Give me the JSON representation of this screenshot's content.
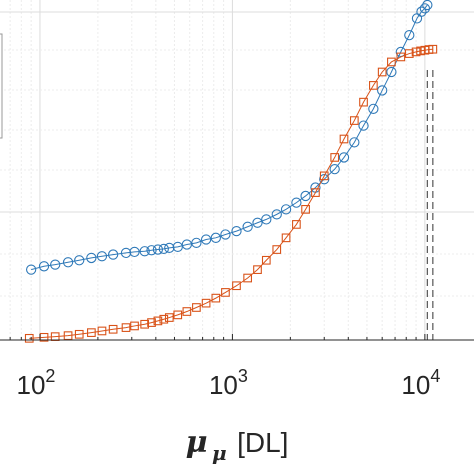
{
  "chart_data": {
    "type": "scatter",
    "title": "",
    "xlabel": {
      "symbol": "μ",
      "subscript": "μ",
      "unit": "[DL]"
    },
    "ylabel": "",
    "xscale": "log",
    "x_ticks": [
      {
        "base": "10",
        "exp": "2",
        "value": 100
      },
      {
        "base": "10",
        "exp": "3",
        "value": 1000
      },
      {
        "base": "10",
        "exp": "4",
        "value": 10000
      }
    ],
    "xlim": [
      62,
      18000
    ],
    "ylim": [
      0,
      1
    ],
    "grid": true,
    "legend": "partially visible box at top-left",
    "series": [
      {
        "marker": "circle",
        "color": "#2f79b8",
        "points": [
          [
            90,
            0.21
          ],
          [
            105,
            0.22
          ],
          [
            120,
            0.225
          ],
          [
            140,
            0.232
          ],
          [
            160,
            0.238
          ],
          [
            185,
            0.245
          ],
          [
            210,
            0.25
          ],
          [
            240,
            0.255
          ],
          [
            280,
            0.26
          ],
          [
            310,
            0.263
          ],
          [
            350,
            0.265
          ],
          [
            380,
            0.268
          ],
          [
            410,
            0.27
          ],
          [
            440,
            0.272
          ],
          [
            470,
            0.275
          ],
          [
            520,
            0.278
          ],
          [
            580,
            0.285
          ],
          [
            650,
            0.29
          ],
          [
            730,
            0.3
          ],
          [
            820,
            0.305
          ],
          [
            920,
            0.315
          ],
          [
            1050,
            0.325
          ],
          [
            1200,
            0.338
          ],
          [
            1350,
            0.35
          ],
          [
            1500,
            0.36
          ],
          [
            1700,
            0.375
          ],
          [
            1900,
            0.39
          ],
          [
            2150,
            0.41
          ],
          [
            2400,
            0.43
          ],
          [
            2700,
            0.455
          ],
          [
            3000,
            0.48
          ],
          [
            3400,
            0.51
          ],
          [
            3800,
            0.545
          ],
          [
            4300,
            0.59
          ],
          [
            4800,
            0.64
          ],
          [
            5400,
            0.69
          ],
          [
            6000,
            0.745
          ],
          [
            6700,
            0.8
          ],
          [
            7500,
            0.86
          ],
          [
            8300,
            0.91
          ],
          [
            9100,
            0.96
          ],
          [
            9600,
            0.98
          ],
          [
            10000,
            0.99
          ],
          [
            10300,
            1.0
          ]
        ]
      },
      {
        "marker": "square",
        "color": "#d95319",
        "points": [
          [
            88,
            0.005
          ],
          [
            105,
            0.008
          ],
          [
            120,
            0.01
          ],
          [
            140,
            0.013
          ],
          [
            160,
            0.017
          ],
          [
            185,
            0.022
          ],
          [
            210,
            0.027
          ],
          [
            240,
            0.032
          ],
          [
            280,
            0.037
          ],
          [
            310,
            0.042
          ],
          [
            350,
            0.047
          ],
          [
            380,
            0.052
          ],
          [
            410,
            0.057
          ],
          [
            440,
            0.062
          ],
          [
            470,
            0.067
          ],
          [
            520,
            0.075
          ],
          [
            580,
            0.085
          ],
          [
            650,
            0.097
          ],
          [
            730,
            0.11
          ],
          [
            820,
            0.125
          ],
          [
            920,
            0.142
          ],
          [
            1050,
            0.162
          ],
          [
            1200,
            0.185
          ],
          [
            1350,
            0.21
          ],
          [
            1500,
            0.238
          ],
          [
            1700,
            0.27
          ],
          [
            1900,
            0.305
          ],
          [
            2150,
            0.345
          ],
          [
            2400,
            0.39
          ],
          [
            2700,
            0.44
          ],
          [
            3000,
            0.49
          ],
          [
            3400,
            0.545
          ],
          [
            3800,
            0.6
          ],
          [
            4300,
            0.655
          ],
          [
            4800,
            0.71
          ],
          [
            5400,
            0.76
          ],
          [
            6000,
            0.8
          ],
          [
            6700,
            0.83
          ],
          [
            7500,
            0.845
          ],
          [
            8300,
            0.855
          ],
          [
            9000,
            0.86
          ],
          [
            9500,
            0.863
          ],
          [
            10000,
            0.865
          ],
          [
            10500,
            0.867
          ],
          [
            11000,
            0.868
          ]
        ]
      }
    ],
    "reference_lines": [
      {
        "x": 10300,
        "style": "dashed",
        "color": "#555555"
      },
      {
        "x": 11000,
        "style": "dashed",
        "color": "#555555"
      }
    ]
  }
}
